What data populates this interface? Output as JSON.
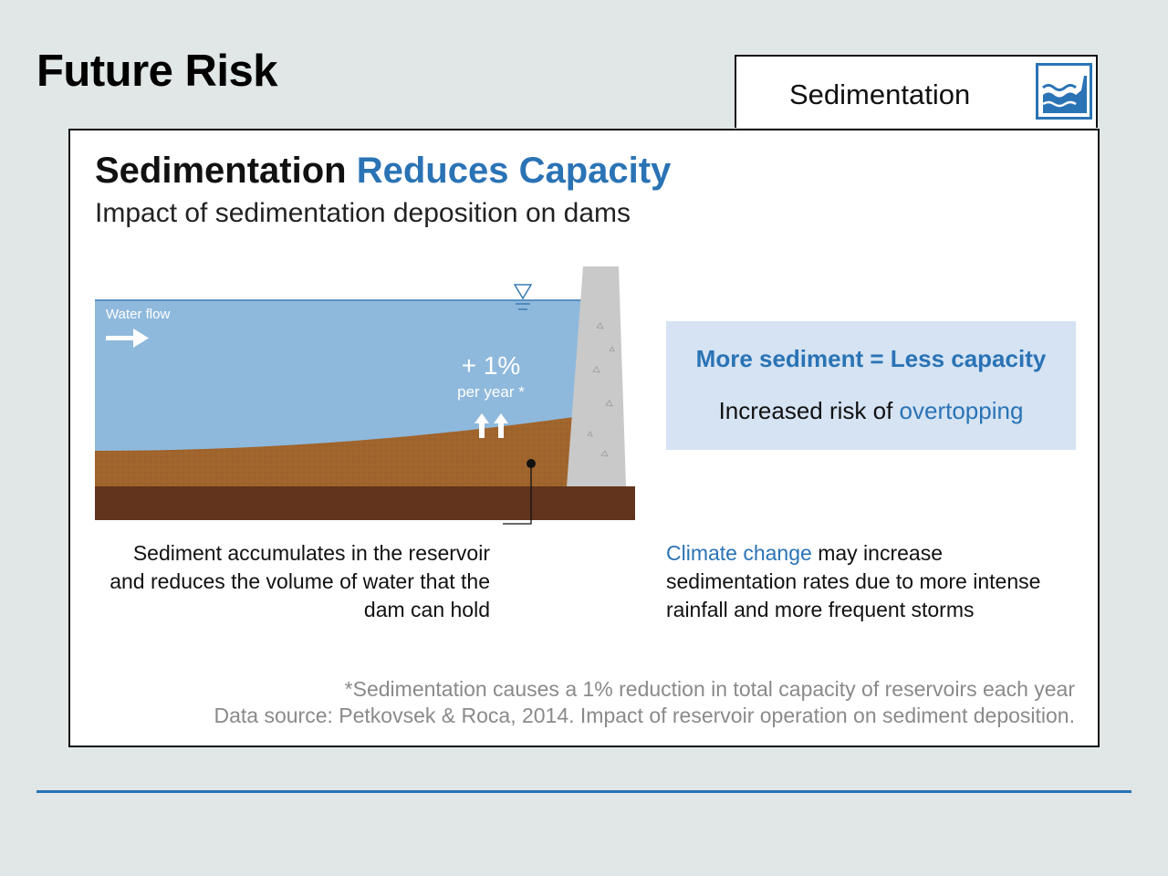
{
  "header": {
    "title": "Future Risk"
  },
  "tab": {
    "label": "Sedimentation",
    "icon": "sedimentation-wave-icon"
  },
  "card": {
    "title_part1": "Sedimentation",
    "title_part2": "Reduces Capacity",
    "subtitle": "Impact of sedimentation deposition on dams"
  },
  "diagram": {
    "water_flow_label": "Water flow",
    "rate_value": "+ 1%",
    "rate_unit": "per year *",
    "callout": "Sediment accumulates in the reservoir and reduces the volume of water that the dam can hold",
    "icons": [
      "water-level-icon",
      "flow-arrow-icon",
      "rising-arrows-icon"
    ]
  },
  "highlight": {
    "heading": "More sediment = Less capacity",
    "body_prefix": "Increased risk of",
    "body_accent": "overtopping"
  },
  "climate": {
    "accent": "Climate change",
    "text": "may increase sedimentation rates due to more intense rainfall and more frequent storms"
  },
  "footnote": {
    "line1": "*Sedimentation causes a 1% reduction in total capacity of reservoirs each year",
    "line2": "Data source: Petkovsek & Roca, 2014. Impact of reservoir operation on sediment deposition."
  },
  "colors": {
    "accent": "#2a73b5",
    "water": "#8fb9dc",
    "sediment": "#a0642d",
    "bedrock": "#62341d",
    "dam": "#c9c9c9",
    "highlight_bg": "#d5e3f3"
  }
}
